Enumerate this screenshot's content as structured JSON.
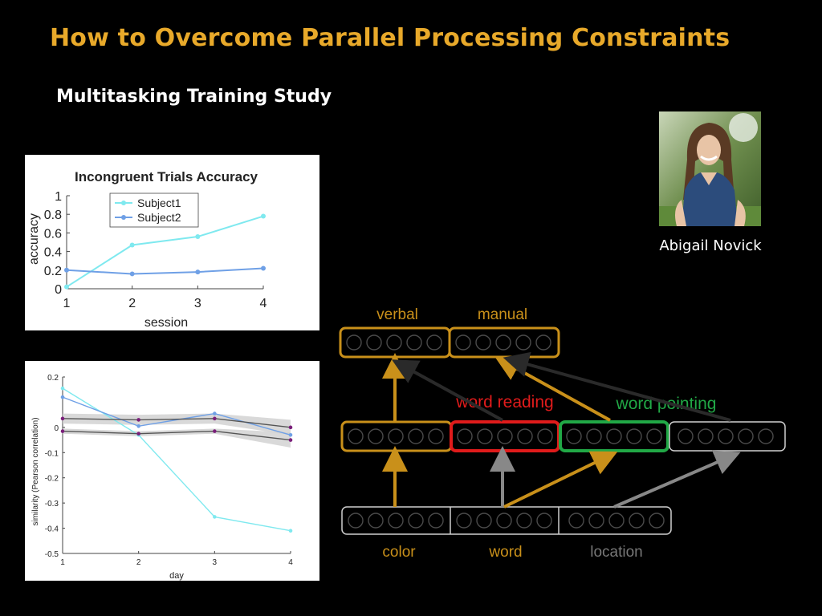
{
  "slide": {
    "title": "How to Overcome Parallel Processing Constraints",
    "subtitle": "Multitasking Training Study",
    "person_name": "Abigail Novick"
  },
  "colors": {
    "title": "#e8a92a",
    "gold": "#c9901a",
    "red": "#e01b1b",
    "green": "#21a846",
    "gray": "#888888",
    "cyan_series": "#7fe9ef",
    "blue_series": "#6fa0e6"
  },
  "network": {
    "output_labels": [
      "verbal",
      "manual"
    ],
    "task_labels": [
      "word reading",
      "word pointing"
    ],
    "input_labels": [
      "color",
      "word",
      "location"
    ]
  },
  "chart_data": [
    {
      "type": "line",
      "title": "Incongruent Trials Accuracy",
      "xlabel": "session",
      "ylabel": "accuracy",
      "x": [
        1,
        2,
        3,
        4
      ],
      "xlim": [
        1,
        4
      ],
      "ylim": [
        0,
        1
      ],
      "xticks": [
        "1",
        "2",
        "3",
        "4"
      ],
      "yticks": [
        "0",
        "0.2",
        "0.4",
        "0.6",
        "0.8",
        "1"
      ],
      "legend_position": "top-left",
      "grid": false,
      "series": [
        {
          "name": "Subject1",
          "color": "#7fe9ef",
          "values": [
            0.02,
            0.47,
            0.56,
            0.78
          ]
        },
        {
          "name": "Subject2",
          "color": "#6fa0e6",
          "values": [
            0.2,
            0.16,
            0.18,
            0.22
          ]
        }
      ]
    },
    {
      "type": "line",
      "xlabel": "day",
      "ylabel": "similarity (Pearson correlation)",
      "x": [
        1,
        2,
        3,
        4
      ],
      "xlim": [
        1,
        4
      ],
      "ylim": [
        -0.5,
        0.2
      ],
      "xticks": [
        "1",
        "2",
        "3",
        "4"
      ],
      "yticks": [
        "0.2",
        "0",
        "-0.1",
        "-0.2",
        "-0.3",
        "-0.4",
        "-0.5"
      ],
      "grid": false,
      "series": [
        {
          "color": "#7fe9ef",
          "values": [
            0.155,
            -0.03,
            -0.355,
            -0.41
          ]
        },
        {
          "color": "#6fa0e6",
          "values": [
            0.12,
            0.005,
            0.055,
            -0.03
          ]
        },
        {
          "color": "#555555",
          "values": [
            0.035,
            0.03,
            0.035,
            0.0
          ],
          "band": [
            0.02,
            0.02,
            0.02,
            0.03
          ]
        },
        {
          "color": "#555555",
          "values": [
            -0.015,
            -0.025,
            -0.015,
            -0.05
          ],
          "band": [
            0.01,
            0.01,
            0.01,
            0.03
          ]
        }
      ]
    }
  ]
}
